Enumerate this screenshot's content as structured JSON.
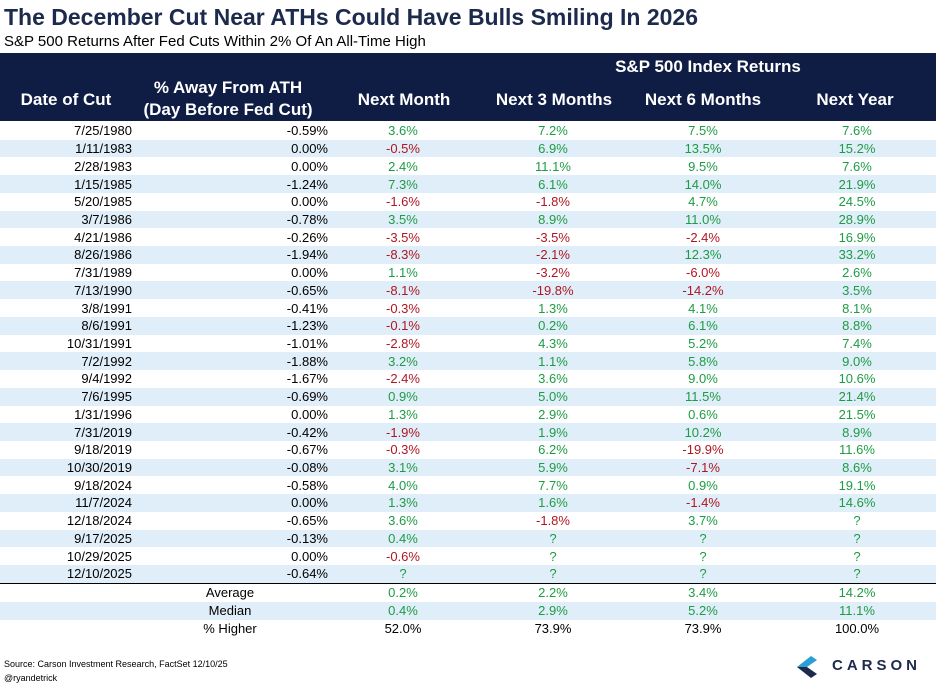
{
  "title": "The December Cut Near ATHs Could Have Bulls Smiling In 2026",
  "subtitle": "S&P 500 Returns After Fed Cuts Within 2% Of An All-Time High",
  "header": {
    "group_label": "S&P 500 Index Returns",
    "col_date": "Date of Cut",
    "col_away_line1": "% Away From ATH",
    "col_away_line2": "(Day Before Fed Cut)",
    "col_next_month": "Next Month",
    "col_next_3m": "Next 3 Months",
    "col_next_6m": "Next 6 Months",
    "col_next_year": "Next Year"
  },
  "colors": {
    "header_bg": "#0f1d45",
    "row_shade": "#dfeef8",
    "positive": "#1e9b45",
    "negative": "#b01622",
    "title": "#1c2a4c"
  },
  "rows": [
    [
      "7/25/1980",
      "-0.59%",
      "3.6%",
      "7.2%",
      "7.5%",
      "7.6%"
    ],
    [
      "1/11/1983",
      "0.00%",
      "-0.5%",
      "6.9%",
      "13.5%",
      "15.2%"
    ],
    [
      "2/28/1983",
      "0.00%",
      "2.4%",
      "11.1%",
      "9.5%",
      "7.6%"
    ],
    [
      "1/15/1985",
      "-1.24%",
      "7.3%",
      "6.1%",
      "14.0%",
      "21.9%"
    ],
    [
      "5/20/1985",
      "0.00%",
      "-1.6%",
      "-1.8%",
      "4.7%",
      "24.5%"
    ],
    [
      "3/7/1986",
      "-0.78%",
      "3.5%",
      "8.9%",
      "11.0%",
      "28.9%"
    ],
    [
      "4/21/1986",
      "-0.26%",
      "-3.5%",
      "-3.5%",
      "-2.4%",
      "16.9%"
    ],
    [
      "8/26/1986",
      "-1.94%",
      "-8.3%",
      "-2.1%",
      "12.3%",
      "33.2%"
    ],
    [
      "7/31/1989",
      "0.00%",
      "1.1%",
      "-3.2%",
      "-6.0%",
      "2.6%"
    ],
    [
      "7/13/1990",
      "-0.65%",
      "-8.1%",
      "-19.8%",
      "-14.2%",
      "3.5%"
    ],
    [
      "3/8/1991",
      "-0.41%",
      "-0.3%",
      "1.3%",
      "4.1%",
      "8.1%"
    ],
    [
      "8/6/1991",
      "-1.23%",
      "-0.1%",
      "0.2%",
      "6.1%",
      "8.8%"
    ],
    [
      "10/31/1991",
      "-1.01%",
      "-2.8%",
      "4.3%",
      "5.2%",
      "7.4%"
    ],
    [
      "7/2/1992",
      "-1.88%",
      "3.2%",
      "1.1%",
      "5.8%",
      "9.0%"
    ],
    [
      "9/4/1992",
      "-1.67%",
      "-2.4%",
      "3.6%",
      "9.0%",
      "10.6%"
    ],
    [
      "7/6/1995",
      "-0.69%",
      "0.9%",
      "5.0%",
      "11.5%",
      "21.4%"
    ],
    [
      "1/31/1996",
      "0.00%",
      "1.3%",
      "2.9%",
      "0.6%",
      "21.5%"
    ],
    [
      "7/31/2019",
      "-0.42%",
      "-1.9%",
      "1.9%",
      "10.2%",
      "8.9%"
    ],
    [
      "9/18/2019",
      "-0.67%",
      "-0.3%",
      "6.2%",
      "-19.9%",
      "11.6%"
    ],
    [
      "10/30/2019",
      "-0.08%",
      "3.1%",
      "5.9%",
      "-7.1%",
      "8.6%"
    ],
    [
      "9/18/2024",
      "-0.58%",
      "4.0%",
      "7.7%",
      "0.9%",
      "19.1%"
    ],
    [
      "11/7/2024",
      "0.00%",
      "1.3%",
      "1.6%",
      "-1.4%",
      "14.6%"
    ],
    [
      "12/18/2024",
      "-0.65%",
      "3.6%",
      "-1.8%",
      "3.7%",
      "?"
    ],
    [
      "9/17/2025",
      "-0.13%",
      "0.4%",
      "?",
      "?",
      "?"
    ],
    [
      "10/29/2025",
      "0.00%",
      "-0.6%",
      "?",
      "?",
      "?"
    ],
    [
      "12/10/2025",
      "-0.64%",
      "?",
      "?",
      "?",
      "?"
    ]
  ],
  "summary": [
    {
      "label": "Average",
      "values": [
        "0.2%",
        "2.2%",
        "3.4%",
        "14.2%"
      ]
    },
    {
      "label": "Median",
      "values": [
        "0.4%",
        "2.9%",
        "5.2%",
        "11.1%"
      ]
    },
    {
      "label": "% Higher",
      "values": [
        "52.0%",
        "73.9%",
        "73.9%",
        "100.0%"
      ]
    }
  ],
  "footer": {
    "source": "Source: Carson Investment Research, FactSet 12/10/25",
    "handle": "@ryandetrick",
    "logo_text": "CARSON",
    "logo_icon": "carson-chevron-logo-icon"
  }
}
